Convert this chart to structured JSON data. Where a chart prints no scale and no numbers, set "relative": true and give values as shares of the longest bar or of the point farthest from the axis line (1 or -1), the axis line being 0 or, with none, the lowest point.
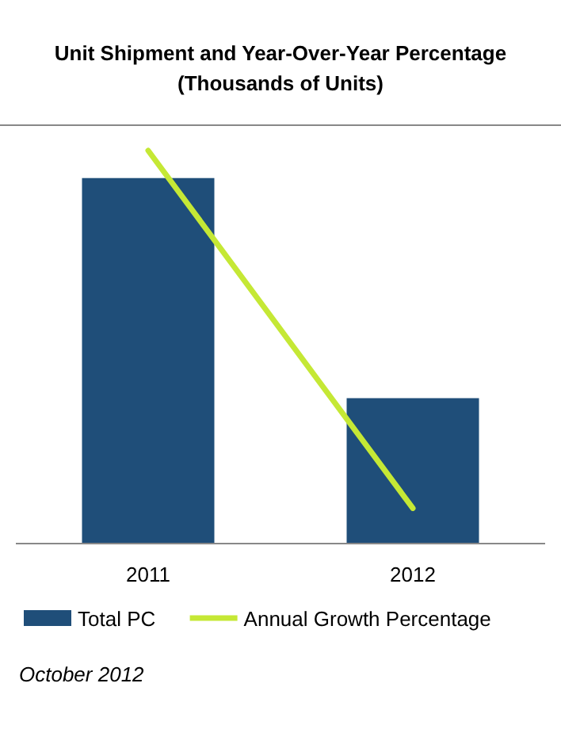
{
  "chart_data": {
    "type": "bar",
    "title": "Unit Shipment and Year-Over-Year Percentage",
    "subtitle": "(Thousands of Units)",
    "categories": [
      "2011",
      "2012"
    ],
    "relative": true,
    "series": [
      {
        "name": "Total PC",
        "color": "#1f4e79",
        "values": [
          0.93,
          0.37
        ]
      },
      {
        "name": "Annual Growth Percentage",
        "type": "line",
        "color": "#c5e835",
        "values": [
          1,
          0.09
        ]
      }
    ],
    "legend": "bottom",
    "annotations": [
      "October 2012"
    ]
  }
}
